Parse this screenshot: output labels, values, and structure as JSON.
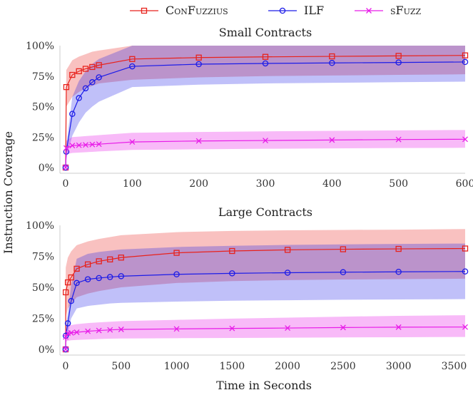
{
  "legend": [
    {
      "label": "ConFuzzius",
      "color": "#e8221c",
      "marker": "square"
    },
    {
      "label": "ILF",
      "color": "#1c1ce8",
      "marker": "circle"
    },
    {
      "label": "sFuzz",
      "color": "#e81ce8",
      "marker": "x"
    }
  ],
  "shared_ylabel": "Instruction Coverage",
  "chart_data": [
    {
      "type": "line",
      "title": "Small Contracts",
      "xlabel": "",
      "ylabel": "Instruction Coverage",
      "xlim": [
        0,
        600
      ],
      "ylim": [
        0,
        100
      ],
      "xticks": [
        "0",
        "100",
        "200",
        "300",
        "400",
        "500",
        "600"
      ],
      "yticks": [
        "0%",
        "25%",
        "50%",
        "75%",
        "100%"
      ],
      "series": [
        {
          "name": "ConFuzzius",
          "color": "#e8221c",
          "marker": "square",
          "x": [
            0,
            1,
            10,
            20,
            30,
            40,
            50,
            100,
            200,
            300,
            400,
            500,
            600
          ],
          "y": [
            0,
            66,
            76,
            79,
            81,
            82.5,
            84,
            89,
            90.2,
            90.8,
            91.2,
            91.6,
            92
          ],
          "band_lower": [
            0,
            50,
            58,
            62,
            65,
            67,
            69,
            72,
            74,
            75,
            75.5,
            76,
            76.5
          ],
          "band_upper": [
            0,
            80,
            88,
            91,
            93,
            95,
            96,
            100,
            100,
            100,
            100,
            100,
            100
          ]
        },
        {
          "name": "ILF",
          "color": "#1c1ce8",
          "marker": "circle",
          "x": [
            0,
            1,
            10,
            20,
            30,
            40,
            50,
            100,
            200,
            300,
            400,
            500,
            600
          ],
          "y": [
            0,
            13,
            44,
            57,
            65,
            70,
            74,
            83,
            84.8,
            85.4,
            85.8,
            86.2,
            86.6
          ],
          "band_lower": [
            0,
            8,
            26,
            37,
            45,
            50,
            54,
            66,
            68,
            69,
            69.5,
            70,
            70.5
          ],
          "band_upper": [
            0,
            18,
            58,
            71,
            79,
            85,
            89,
            100,
            100,
            100,
            100,
            100,
            100
          ]
        },
        {
          "name": "sFuzz",
          "color": "#e81ce8",
          "marker": "x",
          "x": [
            0,
            1,
            10,
            20,
            30,
            40,
            50,
            100,
            200,
            300,
            400,
            500,
            600
          ],
          "y": [
            0,
            16,
            18,
            18.3,
            18.6,
            18.9,
            19.2,
            21,
            21.8,
            22.2,
            22.6,
            23,
            23.2
          ],
          "band_lower": [
            0,
            11,
            12,
            12.3,
            12.6,
            12.9,
            13.2,
            14.5,
            15,
            15.4,
            15.7,
            16,
            16.2
          ],
          "band_upper": [
            0,
            22,
            25,
            25.4,
            25.8,
            26.2,
            26.6,
            28.5,
            29.2,
            29.7,
            30.1,
            30.5,
            30.8
          ]
        }
      ]
    },
    {
      "type": "line",
      "title": "Large Contracts",
      "xlabel": "Time in Seconds",
      "ylabel": "Instruction Coverage",
      "xlim": [
        0,
        3600
      ],
      "ylim": [
        0,
        100
      ],
      "xticks": [
        "0",
        "500",
        "1000",
        "1500",
        "2000",
        "2500",
        "3000",
        "3500"
      ],
      "yticks": [
        "0%",
        "25%",
        "50%",
        "75%",
        "100%"
      ],
      "series": [
        {
          "name": "ConFuzzius",
          "color": "#e8221c",
          "marker": "square",
          "x": [
            0,
            1,
            20,
            50,
            100,
            200,
            300,
            400,
            500,
            1000,
            1500,
            2000,
            2500,
            3000,
            3600
          ],
          "y": [
            0,
            46,
            54,
            58,
            65,
            68.5,
            71,
            72.5,
            74,
            77.8,
            79.3,
            80.2,
            80.7,
            81,
            81.3
          ],
          "band_lower": [
            0,
            26,
            33,
            37,
            42,
            45,
            47,
            48.5,
            50,
            53.5,
            55,
            55.8,
            56.3,
            56.6,
            57
          ],
          "band_upper": [
            0,
            66,
            74,
            79,
            84,
            87,
            89,
            90.5,
            92,
            94.5,
            95.5,
            96,
            96.3,
            96.5,
            97
          ]
        },
        {
          "name": "ILF",
          "color": "#1c1ce8",
          "marker": "circle",
          "x": [
            0,
            1,
            20,
            50,
            100,
            200,
            300,
            400,
            500,
            1000,
            1500,
            2000,
            2500,
            3000,
            3600
          ],
          "y": [
            0,
            11,
            21,
            39,
            53.5,
            56.5,
            57.5,
            58.3,
            59,
            60.5,
            61.3,
            61.8,
            62.2,
            62.5,
            62.8
          ],
          "band_lower": [
            0,
            6,
            13,
            25,
            33,
            35,
            36,
            37,
            37.5,
            38.5,
            39.2,
            39.6,
            40,
            40.2,
            40.5
          ],
          "band_upper": [
            0,
            17,
            30,
            52,
            73,
            77,
            78.5,
            79.5,
            80.5,
            82.5,
            83.5,
            84.2,
            84.6,
            85,
            85.3
          ]
        },
        {
          "name": "sFuzz",
          "color": "#e81ce8",
          "marker": "x",
          "x": [
            0,
            1,
            20,
            50,
            100,
            200,
            300,
            400,
            500,
            1000,
            1500,
            2000,
            2500,
            3000,
            3600
          ],
          "y": [
            0,
            10,
            13,
            13.3,
            13.8,
            14.6,
            15.2,
            15.7,
            16.1,
            16.5,
            16.9,
            17.2,
            17.6,
            17.9,
            18
          ],
          "band_lower": [
            0,
            6,
            7,
            7.3,
            7.6,
            8,
            8.3,
            8.6,
            8.8,
            9,
            9.2,
            9.4,
            9.6,
            9.8,
            10
          ],
          "band_upper": [
            0,
            14,
            19,
            19.6,
            20.3,
            21.2,
            21.8,
            22.3,
            22.8,
            23.8,
            24.8,
            25.6,
            26.4,
            27,
            27.5
          ]
        }
      ]
    }
  ]
}
